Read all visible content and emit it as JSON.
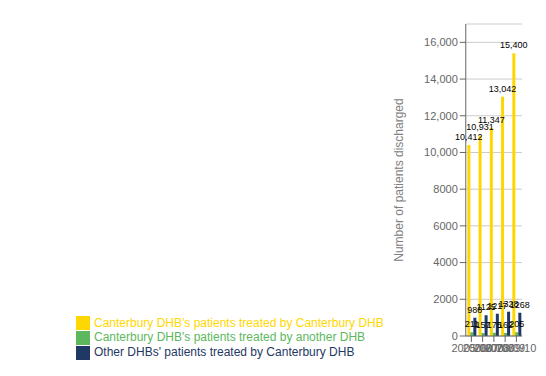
{
  "chart_data": {
    "type": "bar",
    "categories": [
      "2005/06",
      "2006/07",
      "2007/08",
      "2008/09",
      "2009/10"
    ],
    "ylabel": "Number of patients discharged",
    "ylim": [
      0,
      17000
    ],
    "yticks": [
      0,
      2000,
      4000,
      6000,
      8000,
      {
        "value": 10000,
        "label": "10,000"
      },
      {
        "value": 12000,
        "label": "12,000"
      },
      {
        "value": 14000,
        "label": "14,000"
      },
      {
        "value": 16000,
        "label": "16,000"
      }
    ],
    "grid": true,
    "legend": "bottom",
    "data_labels": true,
    "series": [
      {
        "name": "Canterbury DHB's patients treated by Canterbury DHB",
        "color": "#FFD700",
        "values": [
          10412,
          10931,
          11347,
          13042,
          15400
        ],
        "value_labels": [
          "10,412",
          "10,931",
          "11,347",
          "13,042",
          "15,400"
        ]
      },
      {
        "name": "Canterbury DHB's patients treated by another DHB",
        "color": "#5DB85D",
        "values": [
          211,
          157,
          175,
          162,
          205
        ]
      },
      {
        "name": "Other DHBs' patients treated by Canterbury DHB",
        "color": "#1F3864",
        "values": [
          988,
          1125,
          1217,
          1328,
          1268
        ]
      }
    ]
  }
}
